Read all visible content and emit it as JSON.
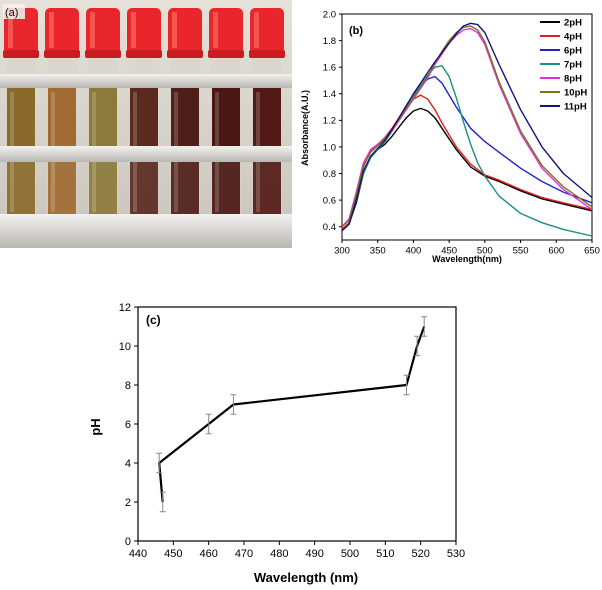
{
  "panel_a": {
    "label": "(a)",
    "tube_count": 7,
    "cap_color": "#e8262b",
    "solution_colors": [
      "#8a6a2a",
      "#a06a30",
      "#8c7a3a",
      "#5a2a1e",
      "#4e1e18",
      "#4a1814",
      "#521a16"
    ]
  },
  "chart_data": [
    {
      "panel": "(b)",
      "type": "line",
      "title": "",
      "xlabel": "Wavelength(nm)",
      "ylabel": "Absorbance(A.U.)",
      "xlim": [
        300,
        650
      ],
      "ylim": [
        0.3,
        2.0
      ],
      "xticks": [
        300,
        350,
        400,
        450,
        500,
        550,
        600,
        650
      ],
      "yticks": [
        0.4,
        0.6,
        0.8,
        1.0,
        1.2,
        1.4,
        1.6,
        1.8,
        2.0
      ],
      "ytick_labels": [
        "0.4",
        "0.6",
        "0.8",
        "1.0",
        "1.2",
        "1.4",
        "1.6",
        "1.8",
        "2.0"
      ],
      "legend_position": "top-right",
      "series": [
        {
          "name": "2pH",
          "color": "#000000",
          "x": [
            300,
            310,
            320,
            330,
            340,
            350,
            360,
            370,
            380,
            390,
            400,
            410,
            420,
            430,
            440,
            460,
            480,
            500,
            520,
            550,
            580,
            610,
            650
          ],
          "y": [
            0.38,
            0.42,
            0.58,
            0.8,
            0.93,
            0.98,
            1.02,
            1.08,
            1.15,
            1.22,
            1.27,
            1.29,
            1.27,
            1.22,
            1.14,
            0.98,
            0.85,
            0.78,
            0.74,
            0.67,
            0.61,
            0.57,
            0.52
          ]
        },
        {
          "name": "4pH",
          "color": "#e0201c",
          "x": [
            300,
            310,
            320,
            330,
            340,
            350,
            360,
            370,
            380,
            390,
            400,
            410,
            420,
            430,
            440,
            460,
            480,
            500,
            520,
            550,
            580,
            610,
            650
          ],
          "y": [
            0.38,
            0.43,
            0.62,
            0.85,
            0.97,
            1.02,
            1.07,
            1.14,
            1.22,
            1.3,
            1.36,
            1.39,
            1.36,
            1.28,
            1.18,
            1.0,
            0.87,
            0.79,
            0.75,
            0.68,
            0.62,
            0.58,
            0.53
          ]
        },
        {
          "name": "6pH",
          "color": "#1e24d0",
          "x": [
            300,
            310,
            320,
            330,
            340,
            350,
            360,
            370,
            380,
            390,
            400,
            410,
            420,
            430,
            440,
            460,
            480,
            500,
            520,
            550,
            580,
            610,
            650
          ],
          "y": [
            0.37,
            0.42,
            0.6,
            0.8,
            0.92,
            0.98,
            1.04,
            1.12,
            1.22,
            1.31,
            1.39,
            1.46,
            1.51,
            1.53,
            1.48,
            1.3,
            1.14,
            1.04,
            0.96,
            0.84,
            0.74,
            0.66,
            0.58
          ]
        },
        {
          "name": "7pH",
          "color": "#1b8f80",
          "x": [
            300,
            310,
            320,
            330,
            340,
            350,
            360,
            370,
            380,
            390,
            400,
            410,
            420,
            430,
            440,
            450,
            460,
            470,
            480,
            490,
            500,
            520,
            550,
            580,
            610,
            650
          ],
          "y": [
            0.37,
            0.42,
            0.6,
            0.8,
            0.92,
            0.98,
            1.04,
            1.12,
            1.22,
            1.31,
            1.39,
            1.46,
            1.54,
            1.6,
            1.61,
            1.53,
            1.37,
            1.19,
            1.02,
            0.88,
            0.78,
            0.63,
            0.5,
            0.43,
            0.38,
            0.33
          ]
        },
        {
          "name": "8pH",
          "color": "#e62ee0",
          "x": [
            300,
            310,
            320,
            330,
            340,
            350,
            360,
            370,
            380,
            390,
            400,
            410,
            420,
            430,
            440,
            450,
            460,
            470,
            480,
            490,
            500,
            520,
            550,
            580,
            610,
            650
          ],
          "y": [
            0.4,
            0.46,
            0.66,
            0.88,
            0.98,
            1.02,
            1.06,
            1.12,
            1.2,
            1.28,
            1.36,
            1.44,
            1.52,
            1.62,
            1.7,
            1.78,
            1.84,
            1.88,
            1.89,
            1.86,
            1.77,
            1.47,
            1.1,
            0.84,
            0.68,
            0.53
          ]
        },
        {
          "name": "10pH",
          "color": "#7a7418",
          "x": [
            300,
            310,
            320,
            330,
            340,
            350,
            360,
            370,
            380,
            390,
            400,
            410,
            420,
            430,
            440,
            450,
            460,
            470,
            480,
            490,
            500,
            520,
            550,
            580,
            610,
            650
          ],
          "y": [
            0.4,
            0.45,
            0.64,
            0.86,
            0.96,
            1.01,
            1.06,
            1.13,
            1.21,
            1.29,
            1.37,
            1.45,
            1.53,
            1.63,
            1.72,
            1.8,
            1.86,
            1.9,
            1.91,
            1.88,
            1.79,
            1.49,
            1.12,
            0.86,
            0.7,
            0.55
          ]
        },
        {
          "name": "11pH",
          "color": "#14147a",
          "x": [
            300,
            310,
            320,
            330,
            340,
            350,
            360,
            370,
            380,
            390,
            400,
            410,
            420,
            430,
            440,
            450,
            460,
            470,
            480,
            490,
            500,
            520,
            550,
            580,
            610,
            650
          ],
          "y": [
            0.37,
            0.42,
            0.6,
            0.82,
            0.93,
            0.99,
            1.05,
            1.13,
            1.22,
            1.31,
            1.4,
            1.48,
            1.56,
            1.64,
            1.71,
            1.78,
            1.85,
            1.91,
            1.93,
            1.92,
            1.86,
            1.62,
            1.28,
            1.0,
            0.8,
            0.62
          ]
        }
      ]
    },
    {
      "panel": "(c)",
      "type": "line",
      "title": "",
      "xlabel": "Wavelength (nm)",
      "ylabel": "pH",
      "xlim": [
        440,
        530
      ],
      "ylim": [
        0,
        12
      ],
      "xticks": [
        440,
        450,
        460,
        470,
        480,
        490,
        500,
        510,
        520,
        530
      ],
      "yticks": [
        0,
        2,
        4,
        6,
        8,
        10,
        12
      ],
      "ytick_labels": [
        "0",
        "2",
        "4",
        "6",
        "8",
        "10",
        "12"
      ],
      "legend_position": "none",
      "series": [
        {
          "name": "pH",
          "color": "#000000",
          "x": [
            447,
            446,
            460,
            467,
            516,
            519,
            521
          ],
          "y": [
            2,
            4,
            6,
            7,
            8,
            10,
            11
          ],
          "error": [
            0.5,
            0.5,
            0.5,
            0.5,
            0.5,
            0.5,
            0.5
          ]
        }
      ]
    }
  ]
}
